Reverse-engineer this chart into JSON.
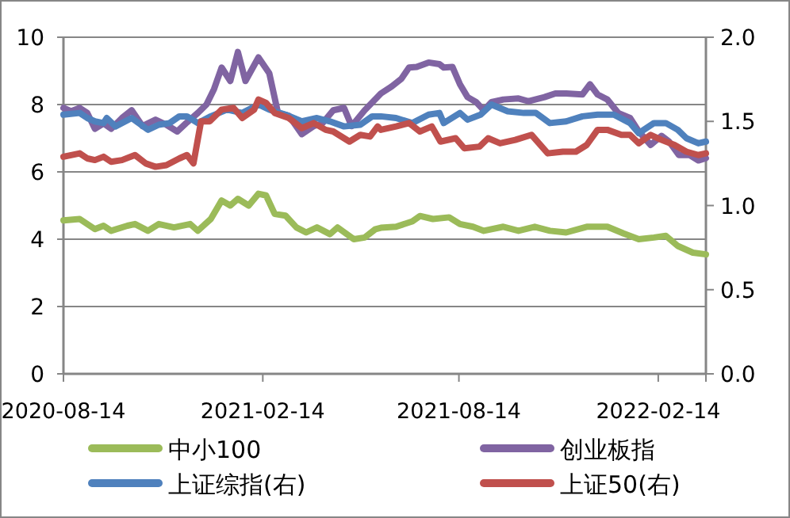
{
  "chart_data": {
    "type": "line",
    "grid": "y",
    "legend": "bottom",
    "xlim": [
      "2020-08-14",
      "2022-03-30"
    ],
    "xticks": [
      "2020-08-14",
      "2021-02-14",
      "2021-08-14",
      "2022-02-14"
    ],
    "ylim": [
      0,
      10
    ],
    "yticks": [
      0,
      2,
      4,
      6,
      8,
      10
    ],
    "y2lim": [
      0,
      2
    ],
    "y2ticks": [
      {
        "value": 0,
        "label": "0.0"
      },
      0.5,
      {
        "value": 1,
        "label": "1.0"
      },
      1.5,
      {
        "value": 2,
        "label": "2.0"
      }
    ],
    "series": [
      {
        "name": "中小100",
        "color": "#9bbb59",
        "x": [
          "2020-08-14",
          "2020-08-29",
          "2020-09-12",
          "2020-09-20",
          "2020-09-27",
          "2020-10-12",
          "2020-10-19",
          "2020-10-31",
          "2020-11-10",
          "2020-11-24",
          "2020-12-09",
          "2020-12-16",
          "2020-12-28",
          "2021-01-07",
          "2021-01-15",
          "2021-01-22",
          "2021-02-01",
          "2021-02-10",
          "2021-02-17",
          "2021-02-25",
          "2021-03-07",
          "2021-03-17",
          "2021-03-26",
          "2021-04-05",
          "2021-04-17",
          "2021-04-24",
          "2021-05-09",
          "2021-05-19",
          "2021-05-29",
          "2021-06-03",
          "2021-06-17",
          "2021-07-02",
          "2021-07-09",
          "2021-07-21",
          "2021-08-05",
          "2021-08-15",
          "2021-08-27",
          "2021-09-06",
          "2021-09-24",
          "2021-10-08",
          "2021-10-23",
          "2021-11-06",
          "2021-11-21",
          "2021-12-10",
          "2021-12-29",
          "2022-01-13",
          "2022-01-27",
          "2022-02-10",
          "2022-02-21",
          "2022-03-04",
          "2022-03-18",
          "2022-03-30"
        ],
        "values": [
          4.56,
          4.6,
          4.3,
          4.4,
          4.25,
          4.4,
          4.45,
          4.25,
          4.45,
          4.35,
          4.45,
          4.25,
          4.6,
          5.15,
          5.0,
          5.2,
          5.0,
          5.35,
          5.3,
          4.75,
          4.7,
          4.35,
          4.2,
          4.35,
          4.15,
          4.35,
          4.0,
          4.05,
          4.3,
          4.34,
          4.37,
          4.53,
          4.69,
          4.6,
          4.65,
          4.45,
          4.37,
          4.25,
          4.37,
          4.25,
          4.37,
          4.25,
          4.2,
          4.37,
          4.37,
          4.17,
          4.0,
          4.05,
          4.1,
          3.8,
          3.6,
          3.55
        ]
      },
      {
        "name": "创业板指",
        "color": "#8064a2",
        "x": [
          "2020-08-14",
          "2020-08-21",
          "2020-08-29",
          "2020-09-05",
          "2020-09-12",
          "2020-09-20",
          "2020-09-27",
          "2020-10-07",
          "2020-10-16",
          "2020-10-26",
          "2020-11-07",
          "2020-11-17",
          "2020-11-27",
          "2020-12-05",
          "2020-12-16",
          "2020-12-24",
          "2020-12-31",
          "2021-01-07",
          "2021-01-15",
          "2021-01-22",
          "2021-01-29",
          "2021-02-10",
          "2021-02-20",
          "2021-02-28",
          "2021-03-10",
          "2021-03-22",
          "2021-04-02",
          "2021-04-10",
          "2021-04-20",
          "2021-04-30",
          "2021-05-07",
          "2021-05-19",
          "2021-06-03",
          "2021-06-13",
          "2021-06-22",
          "2021-06-29",
          "2021-07-06",
          "2021-07-17",
          "2021-07-27",
          "2021-07-31",
          "2021-08-08",
          "2021-08-15",
          "2021-08-22",
          "2021-08-30",
          "2021-09-06",
          "2021-09-13",
          "2021-09-24",
          "2021-10-08",
          "2021-10-17",
          "2021-11-01",
          "2021-11-11",
          "2021-11-21",
          "2021-12-06",
          "2021-12-13",
          "2021-12-20",
          "2021-12-29",
          "2022-01-08",
          "2022-01-19",
          "2022-01-27",
          "2022-02-07",
          "2022-02-17",
          "2022-02-24",
          "2022-03-05",
          "2022-03-15",
          "2022-03-23",
          "2022-03-30"
        ],
        "values": [
          7.9,
          7.8,
          7.9,
          7.75,
          7.28,
          7.44,
          7.28,
          7.6,
          7.83,
          7.36,
          7.55,
          7.4,
          7.2,
          7.44,
          7.75,
          8.0,
          8.46,
          9.1,
          8.7,
          9.56,
          8.7,
          9.4,
          8.93,
          7.75,
          7.67,
          7.12,
          7.36,
          7.44,
          7.83,
          7.9,
          7.36,
          7.83,
          8.33,
          8.54,
          8.77,
          9.1,
          9.12,
          9.25,
          9.2,
          9.1,
          9.12,
          8.6,
          8.22,
          8.07,
          7.83,
          8.07,
          8.15,
          8.18,
          8.1,
          8.22,
          8.33,
          8.33,
          8.3,
          8.6,
          8.3,
          8.15,
          7.75,
          7.6,
          7.2,
          6.8,
          7.07,
          6.9,
          6.5,
          6.5,
          6.34,
          6.41
        ]
      },
      {
        "name": "上证综指(右)",
        "color": "#4f81bd",
        "axis": "y2",
        "x": [
          "2020-08-14",
          "2020-08-29",
          "2020-09-05",
          "2020-09-12",
          "2020-09-20",
          "2020-09-23",
          "2020-10-01",
          "2020-10-16",
          "2020-10-31",
          "2020-11-10",
          "2020-11-20",
          "2020-11-29",
          "2020-12-06",
          "2020-12-16",
          "2020-12-28",
          "2021-01-12",
          "2021-01-26",
          "2021-02-10",
          "2021-02-20",
          "2021-03-07",
          "2021-03-22",
          "2021-04-05",
          "2021-04-17",
          "2021-04-30",
          "2021-05-15",
          "2021-05-26",
          "2021-06-03",
          "2021-06-17",
          "2021-07-02",
          "2021-07-17",
          "2021-07-27",
          "2021-07-31",
          "2021-08-15",
          "2021-08-22",
          "2021-09-03",
          "2021-09-13",
          "2021-09-28",
          "2021-10-13",
          "2021-10-24",
          "2021-11-06",
          "2021-11-21",
          "2021-12-06",
          "2021-12-20",
          "2022-01-04",
          "2022-01-19",
          "2022-01-27",
          "2022-02-10",
          "2022-02-21",
          "2022-03-04",
          "2022-03-12",
          "2022-03-23",
          "2022-03-30"
        ],
        "values": [
          1.54,
          1.55,
          1.52,
          1.5,
          1.49,
          1.52,
          1.47,
          1.52,
          1.45,
          1.48,
          1.49,
          1.53,
          1.53,
          1.49,
          1.53,
          1.57,
          1.55,
          1.6,
          1.57,
          1.54,
          1.5,
          1.52,
          1.5,
          1.47,
          1.48,
          1.53,
          1.53,
          1.52,
          1.49,
          1.54,
          1.55,
          1.49,
          1.55,
          1.51,
          1.54,
          1.6,
          1.56,
          1.55,
          1.55,
          1.49,
          1.5,
          1.53,
          1.54,
          1.54,
          1.49,
          1.43,
          1.49,
          1.49,
          1.45,
          1.4,
          1.37,
          1.38
        ]
      },
      {
        "name": "上证50(右)",
        "color": "#c0504d",
        "axis": "y2",
        "x": [
          "2020-08-14",
          "2020-08-29",
          "2020-09-05",
          "2020-09-12",
          "2020-09-20",
          "2020-09-27",
          "2020-10-07",
          "2020-10-19",
          "2020-10-29",
          "2020-11-07",
          "2020-11-17",
          "2020-11-29",
          "2020-12-06",
          "2020-12-12",
          "2020-12-19",
          "2020-12-27",
          "2021-01-07",
          "2021-01-18",
          "2021-01-26",
          "2021-02-06",
          "2021-02-10",
          "2021-02-17",
          "2021-02-25",
          "2021-03-10",
          "2021-03-22",
          "2021-04-02",
          "2021-04-13",
          "2021-04-20",
          "2021-05-05",
          "2021-05-15",
          "2021-05-24",
          "2021-05-31",
          "2021-06-03",
          "2021-06-17",
          "2021-06-29",
          "2021-07-09",
          "2021-07-20",
          "2021-07-28",
          "2021-08-11",
          "2021-08-19",
          "2021-09-02",
          "2021-09-10",
          "2021-09-21",
          "2021-10-05",
          "2021-10-20",
          "2021-11-04",
          "2021-11-18",
          "2021-11-30",
          "2021-12-10",
          "2021-12-20",
          "2021-12-29",
          "2022-01-11",
          "2022-01-19",
          "2022-01-27",
          "2022-02-07",
          "2022-02-17",
          "2022-03-01",
          "2022-03-12",
          "2022-03-23",
          "2022-03-30"
        ],
        "values": [
          1.29,
          1.31,
          1.28,
          1.27,
          1.29,
          1.26,
          1.27,
          1.3,
          1.25,
          1.23,
          1.24,
          1.28,
          1.3,
          1.25,
          1.5,
          1.5,
          1.57,
          1.58,
          1.52,
          1.57,
          1.63,
          1.61,
          1.55,
          1.52,
          1.46,
          1.49,
          1.45,
          1.44,
          1.38,
          1.42,
          1.41,
          1.47,
          1.45,
          1.47,
          1.49,
          1.44,
          1.47,
          1.38,
          1.4,
          1.34,
          1.35,
          1.4,
          1.37,
          1.39,
          1.42,
          1.31,
          1.32,
          1.32,
          1.36,
          1.45,
          1.45,
          1.42,
          1.42,
          1.37,
          1.42,
          1.39,
          1.36,
          1.32,
          1.3,
          1.31
        ]
      }
    ]
  }
}
